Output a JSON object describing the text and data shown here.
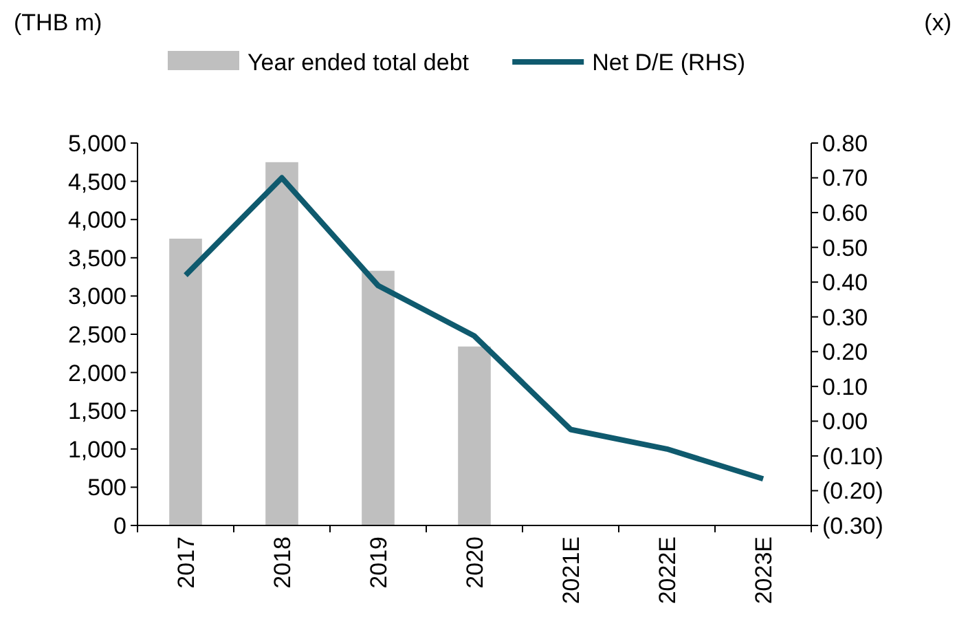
{
  "chart_data": {
    "type": "bar",
    "ylabel": "(THB m)",
    "y2label": "(x)",
    "legend": "top",
    "categories": [
      "2017",
      "2018",
      "2019",
      "2020",
      "2021E",
      "2022E",
      "2023E"
    ],
    "series": [
      {
        "name": "Year ended total debt",
        "color": "#bfbfbf",
        "values": [
          3750,
          4750,
          3330,
          2340,
          null,
          null,
          null
        ]
      },
      {
        "name": "Net D/E (RHS)",
        "type": "line",
        "axis": "y2",
        "color": "#0f5a6e",
        "values": [
          0.42,
          0.7,
          0.39,
          0.245,
          -0.024,
          -0.08,
          -0.166
        ]
      }
    ],
    "ylim": [
      0,
      5000
    ],
    "yticks": [
      0,
      {
        "value": 500,
        "label": "500"
      },
      {
        "value": 1000,
        "label": "1,000"
      },
      {
        "value": 1500,
        "label": "1,500"
      },
      {
        "value": 2000,
        "label": "2,000"
      },
      {
        "value": 2500,
        "label": "2,500"
      },
      {
        "value": 3000,
        "label": "3,000"
      },
      {
        "value": 3500,
        "label": "3,500"
      },
      {
        "value": 4000,
        "label": "4,000"
      },
      {
        "value": 4500,
        "label": "4,500"
      },
      {
        "value": 5000,
        "label": "5,000"
      }
    ],
    "y2lim": [
      -0.3,
      0.8
    ],
    "y2ticks": [
      {
        "value": -0.3,
        "label": "(0.30)"
      },
      {
        "value": -0.2,
        "label": "(0.20)"
      },
      {
        "value": -0.1,
        "label": "(0.10)"
      },
      {
        "value": 0,
        "label": "0.00"
      },
      {
        "value": 0.1,
        "label": "0.10"
      },
      {
        "value": 0.2,
        "label": "0.20"
      },
      {
        "value": 0.3,
        "label": "0.30"
      },
      {
        "value": 0.4,
        "label": "0.40"
      },
      {
        "value": 0.5,
        "label": "0.50"
      },
      {
        "value": 0.6,
        "label": "0.60"
      },
      {
        "value": 0.7,
        "label": "0.70"
      },
      {
        "value": 0.8,
        "label": "0.80"
      }
    ],
    "marker": "none",
    "line_style": "solid",
    "grid": false
  }
}
